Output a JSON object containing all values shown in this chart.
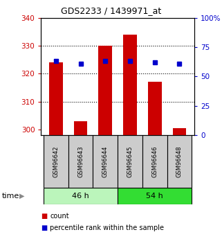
{
  "title": "GDS2233 / 1439971_at",
  "samples": [
    "GSM96642",
    "GSM96643",
    "GSM96644",
    "GSM96645",
    "GSM96646",
    "GSM96648"
  ],
  "count_values": [
    324,
    303,
    330,
    334,
    317,
    300.5
  ],
  "percentile_values": [
    63,
    61,
    63,
    63,
    62,
    61
  ],
  "ylim_left": [
    298,
    340
  ],
  "ylim_right": [
    0,
    100
  ],
  "yticks_left": [
    300,
    310,
    320,
    330,
    340
  ],
  "yticks_right": [
    0,
    25,
    50,
    75,
    100
  ],
  "bar_color": "#cc0000",
  "dot_color": "#0000cc",
  "bar_width": 0.55,
  "background_plot": "#ffffff",
  "background_label": "#cccccc",
  "left_axis_color": "#cc0000",
  "right_axis_color": "#0000cc",
  "group1_label": "46 h",
  "group2_label": "54 h",
  "group1_color": "#bbf5bb",
  "group2_color": "#33dd33",
  "grid_yticks": [
    310,
    320,
    330
  ]
}
